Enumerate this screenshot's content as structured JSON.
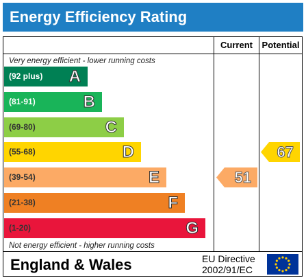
{
  "title": "Energy Efficiency Rating",
  "columns": {
    "current": "Current",
    "potential": "Potential"
  },
  "notes": {
    "top": "Very energy efficient - lower running costs",
    "bottom": "Not energy efficient - higher running costs"
  },
  "bands": [
    {
      "range": "(92 plus)",
      "letter": "A",
      "color": "#008054",
      "text_color": "#ffffff"
    },
    {
      "range": "(81-91)",
      "letter": "B",
      "color": "#19b459",
      "text_color": "#ffffff"
    },
    {
      "range": "(69-80)",
      "letter": "C",
      "color": "#8dce46",
      "text_color": "#333333"
    },
    {
      "range": "(55-68)",
      "letter": "D",
      "color": "#ffd500",
      "text_color": "#333333"
    },
    {
      "range": "(39-54)",
      "letter": "E",
      "color": "#fcaa65",
      "text_color": "#333333"
    },
    {
      "range": "(21-38)",
      "letter": "F",
      "color": "#ef8023",
      "text_color": "#333333"
    },
    {
      "range": "(1-20)",
      "letter": "G",
      "color": "#e9153b",
      "text_color": "#333333"
    }
  ],
  "ratings": {
    "current": {
      "value": "51",
      "band": "E",
      "color": "#fcaa65"
    },
    "potential": {
      "value": "67",
      "band": "D",
      "color": "#ffd500"
    }
  },
  "footer": {
    "region": "England & Wales",
    "directive_line1": "EU Directive",
    "directive_line2": "2002/91/EC",
    "flag_icon": "eu-flag-icon"
  }
}
